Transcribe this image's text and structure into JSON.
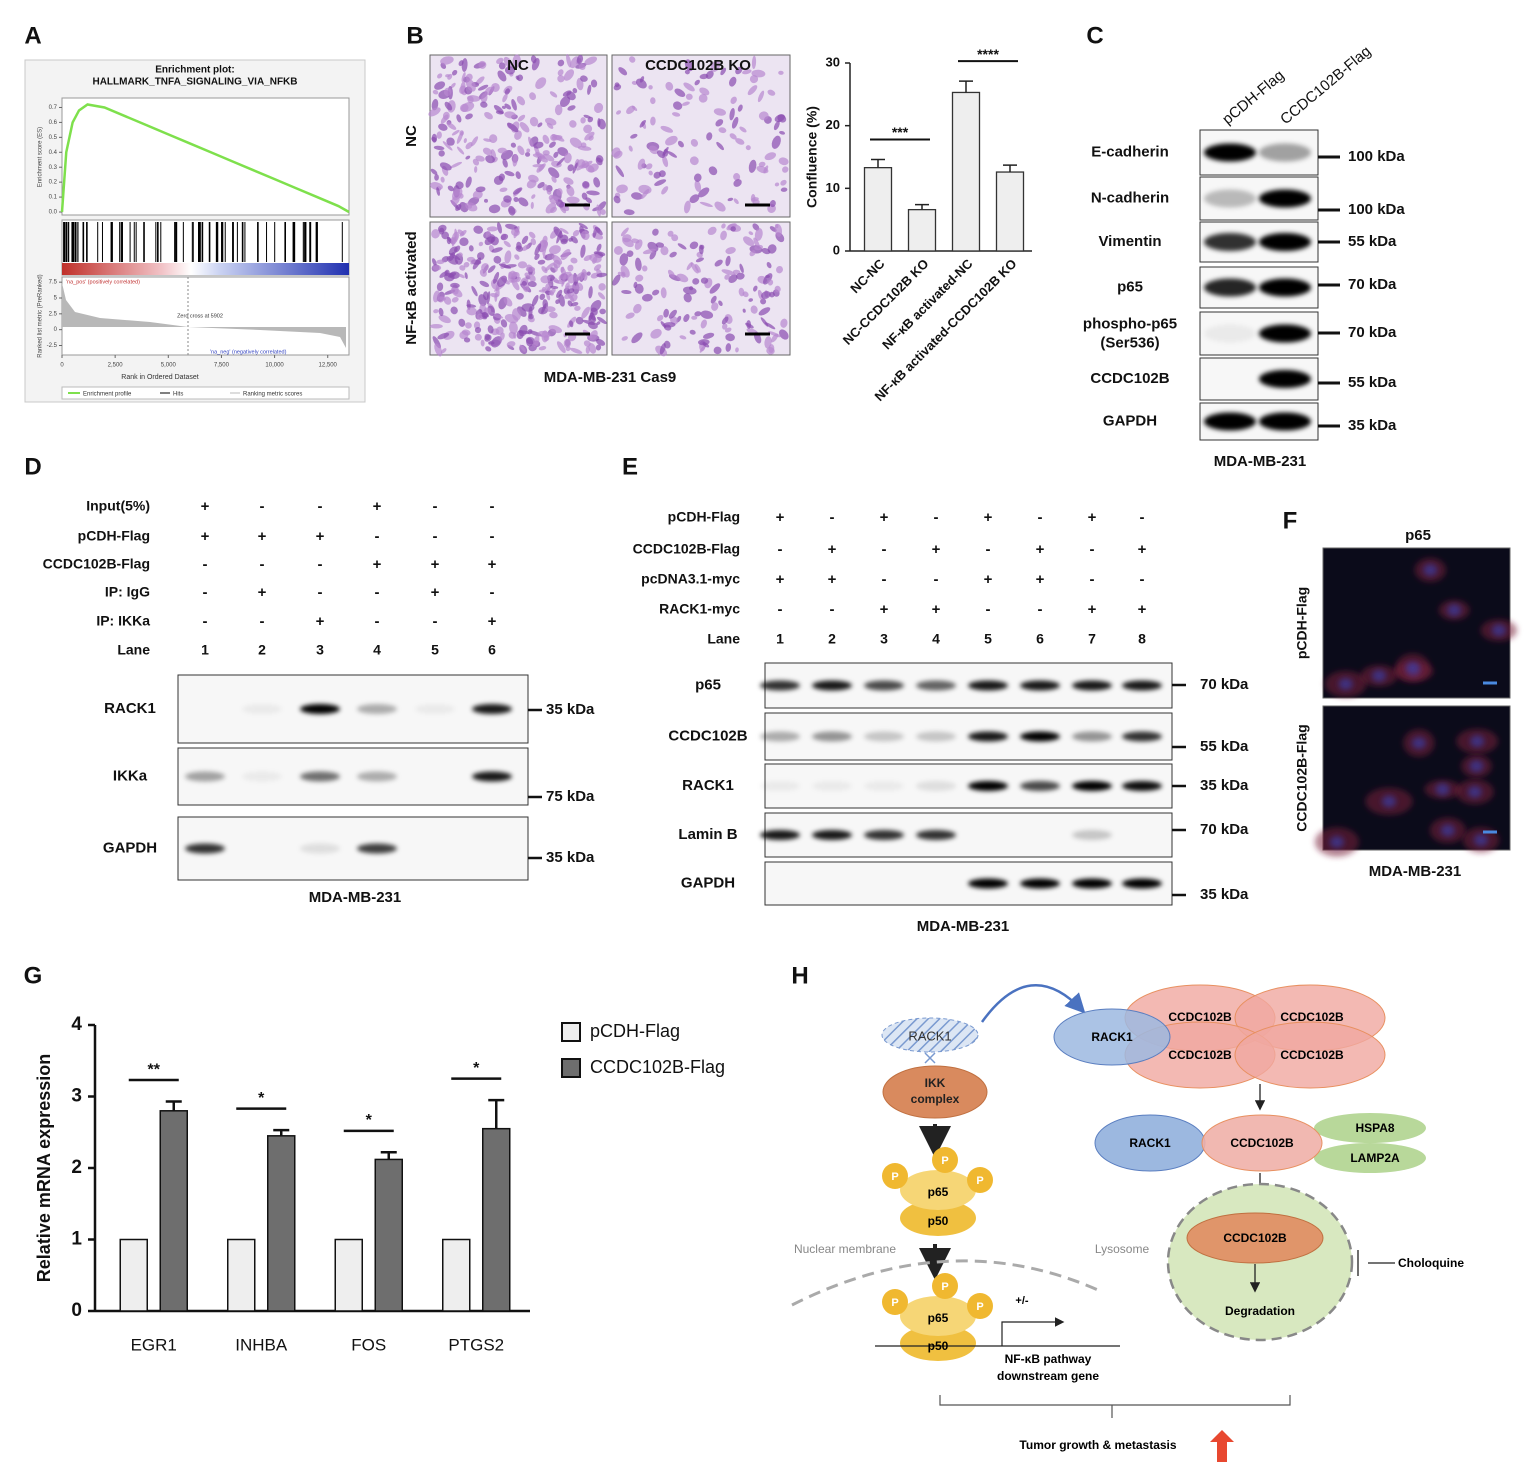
{
  "panel_labels": [
    "A",
    "B",
    "C",
    "D",
    "E",
    "F",
    "G",
    "H"
  ],
  "chart_data": [
    {
      "type": "line",
      "title": "Enrichment plot:",
      "subtitle": "HALLMARK_TNFA_SIGNALING_VIA_NFKB",
      "y_label": "Enrichment score (ES)",
      "x_label": "Rank in Ordered Dataset",
      "x": [
        0,
        200,
        500,
        800,
        1200,
        2000,
        3000,
        4000,
        5000,
        6000,
        7000,
        8000,
        9000,
        10000,
        11000,
        12000,
        13000,
        13500
      ],
      "series": [
        {
          "name": "Enrichment profile",
          "color": "#7ee04c",
          "values": [
            0,
            0.4,
            0.6,
            0.68,
            0.72,
            0.7,
            0.64,
            0.58,
            0.52,
            0.46,
            0.4,
            0.34,
            0.28,
            0.22,
            0.16,
            0.1,
            0.04,
            0
          ]
        }
      ],
      "xlim": [
        0,
        13500
      ],
      "ylim": [
        -0.02,
        0.75
      ],
      "yticks": [
        {
          "value": 0,
          "label": "0.0"
        },
        0.1,
        0.2,
        0.3,
        0.4,
        0.5,
        0.6,
        0.7
      ],
      "xticks": [
        0,
        {
          "value": 2500,
          "label": "2,500"
        },
        {
          "value": 5000,
          "label": "5,000"
        },
        {
          "value": 7500,
          "label": "7,500"
        },
        {
          "value": 10000,
          "label": "10,000"
        },
        {
          "value": 12500,
          "label": "12,500"
        }
      ],
      "metric_label": "Ranked list metric (PreRanked)",
      "metric_ylim": [
        -4,
        8
      ],
      "metric_yticks": [
        7.5,
        5,
        2.5,
        0,
        -2.5
      ],
      "annotations": [
        "'na_pos' (positively correlated)",
        "Zero cross at 5902",
        "'na_neg' (negatively correlated)"
      ],
      "legend": [
        "Enrichment profile",
        "Hits",
        "Ranking metric scores"
      ]
    },
    {
      "type": "bar",
      "y_label": "Confluence (%)",
      "categories": [
        "NC-NC",
        "NC-CCDC102B KO",
        "NF-κB activated-NC",
        "NF-κB activated-CCDC102B KO"
      ],
      "values": [
        13.3,
        6.6,
        25.3,
        12.6
      ],
      "errors": [
        1.3,
        0.8,
        1.8,
        1.1
      ],
      "color": "#eeeeee",
      "ylim": [
        0,
        30
      ],
      "yticks": [
        0,
        10,
        20,
        30
      ],
      "annotations": [
        "***",
        "****"
      ]
    },
    {
      "type": "bar",
      "y_label": "Relative mRNA expression",
      "categories": [
        "EGR1",
        "INHBA",
        "FOS",
        "PTGS2"
      ],
      "series": [
        {
          "name": "pCDH-Flag",
          "color": "#eeeeee",
          "values": [
            1,
            1,
            1,
            1
          ]
        },
        {
          "name": "CCDC102B-Flag",
          "color": "#6e6e6e",
          "values": [
            2.8,
            2.45,
            2.12,
            2.55
          ],
          "errors": [
            0.13,
            0.08,
            0.1,
            0.4
          ]
        }
      ],
      "ylim": [
        0,
        4
      ],
      "yticks": [
        0,
        1,
        2,
        3,
        4
      ],
      "annotations": [
        "**",
        "*",
        "*",
        "*"
      ]
    }
  ],
  "panel_b": {
    "columns": [
      "NC",
      "CCDC102B KO"
    ],
    "rows": [
      "NC",
      "NF-κB activated"
    ],
    "caption": "MDA-MB-231 Cas9"
  },
  "panel_c": {
    "lanes": [
      "pCDH-Flag",
      "CCDC102B-Flag"
    ],
    "blots": [
      {
        "label": "E-cadherin",
        "size": "100 kDa"
      },
      {
        "label": "N-cadherin",
        "size": "100 kDa"
      },
      {
        "label": "Vimentin",
        "size": "55 kDa"
      },
      {
        "label": "p65",
        "size": "70 kDa"
      },
      {
        "label": "phospho-p65",
        "sublabel": "(Ser536)",
        "size": "70 kDa"
      },
      {
        "label": "CCDC102B",
        "size": "55 kDa"
      },
      {
        "label": "GAPDH",
        "size": "35 kDa"
      }
    ],
    "caption": "MDA-MB-231"
  },
  "panel_d": {
    "conditions": [
      {
        "label": "Input(5%)",
        "signs": [
          "+",
          "-",
          "-",
          "+",
          "-",
          "-"
        ]
      },
      {
        "label": "pCDH-Flag",
        "signs": [
          "+",
          "+",
          "+",
          "-",
          "-",
          "-"
        ]
      },
      {
        "label": "CCDC102B-Flag",
        "signs": [
          "-",
          "-",
          "-",
          "+",
          "+",
          "+"
        ]
      },
      {
        "label": "IP: IgG",
        "signs": [
          "-",
          "+",
          "-",
          "-",
          "+",
          "-"
        ]
      },
      {
        "label": "IP: IKKa",
        "signs": [
          "-",
          "-",
          "+",
          "-",
          "-",
          "+"
        ]
      }
    ],
    "lane_label": "Lane",
    "lanes": [
      1,
      2,
      3,
      4,
      5,
      6
    ],
    "blots": [
      {
        "label": "RACK1",
        "size": "35 kDa"
      },
      {
        "label": "IKKa",
        "size": "75 kDa"
      },
      {
        "label": "GAPDH",
        "size": "35 kDa"
      }
    ],
    "caption": "MDA-MB-231"
  },
  "panel_e": {
    "conditions": [
      {
        "label": "pCDH-Flag",
        "signs": [
          "+",
          "-",
          "+",
          "-",
          "+",
          "-",
          "+",
          "-"
        ]
      },
      {
        "label": "CCDC102B-Flag",
        "signs": [
          "-",
          "+",
          "-",
          "+",
          "-",
          "+",
          "-",
          "+"
        ]
      },
      {
        "label": "pcDNA3.1-myc",
        "signs": [
          "+",
          "+",
          "-",
          "-",
          "+",
          "+",
          "-",
          "-"
        ]
      },
      {
        "label": "RACK1-myc",
        "signs": [
          "-",
          "-",
          "+",
          "+",
          "-",
          "-",
          "+",
          "+"
        ]
      }
    ],
    "lane_label": "Lane",
    "lanes": [
      1,
      2,
      3,
      4,
      5,
      6,
      7,
      8
    ],
    "blots": [
      {
        "label": "p65",
        "size": "70 kDa"
      },
      {
        "label": "CCDC102B",
        "size": "55 kDa"
      },
      {
        "label": "RACK1",
        "size": "35 kDa"
      },
      {
        "label": "Lamin B",
        "size": "70 kDa"
      },
      {
        "label": "GAPDH",
        "size": "35 kDa"
      }
    ],
    "caption": "MDA-MB-231"
  },
  "panel_f": {
    "title": "p65",
    "rows": [
      "pCDH-Flag",
      "CCDC102B-Flag"
    ],
    "caption": "MDA-MB-231"
  },
  "panel_h": {
    "rack1_hatched": "RACK1",
    "ikk_1": "IKK",
    "ikk_2": "complex",
    "p": "P",
    "p65": "p65",
    "p50": "p50",
    "nuclear_membrane": "Nuclear membrane",
    "plus_minus": "+/-",
    "gene_1": "NF-κB pathway",
    "gene_2": "downstream gene",
    "rack1": "RACK1",
    "ccdc102b": "CCDC102B",
    "hspa8": "HSPA8",
    "lamp2a": "LAMP2A",
    "lysosome": "Lysosome",
    "degradation": "Degradation",
    "choloquine": "Choloquine",
    "outcome": "Tumor growth & metastasis"
  }
}
